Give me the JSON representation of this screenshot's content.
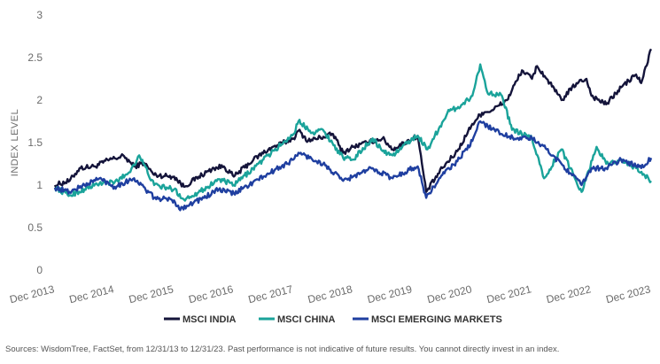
{
  "chart_data": {
    "type": "line",
    "ylabel": "INDEX LEVEL",
    "ylim": [
      0,
      3
    ],
    "yticks": [
      "0",
      "0.5",
      "1",
      "1.5",
      "2",
      "2.5",
      "3"
    ],
    "xlim": [
      "2013-12-31",
      "2023-12-31"
    ],
    "xticks": [
      {
        "date": "2013-12-31",
        "label": "Dec 2013"
      },
      {
        "date": "2014-12-31",
        "label": "Dec 2014"
      },
      {
        "date": "2015-12-31",
        "label": "Dec 2015"
      },
      {
        "date": "2016-12-31",
        "label": "Dec 2016"
      },
      {
        "date": "2017-12-31",
        "label": "Dec 2017"
      },
      {
        "date": "2018-12-31",
        "label": "Dec 2018"
      },
      {
        "date": "2019-12-31",
        "label": "Dec 2019"
      },
      {
        "date": "2020-12-31",
        "label": "Dec 2020"
      },
      {
        "date": "2021-12-31",
        "label": "Dec 2021"
      },
      {
        "date": "2022-12-31",
        "label": "Dec 2022"
      },
      {
        "date": "2023-12-31",
        "label": "Dec 2023"
      }
    ],
    "grid": false,
    "legend": "bottom",
    "series": [
      {
        "name": "MSCI INDIA",
        "color": "#14143a",
        "points": [
          [
            "2013-12-31",
            1.0
          ],
          [
            "2014-03-31",
            1.05
          ],
          [
            "2014-05-31",
            1.2
          ],
          [
            "2014-08-31",
            1.22
          ],
          [
            "2014-11-30",
            1.3
          ],
          [
            "2015-02-28",
            1.34
          ],
          [
            "2015-04-30",
            1.22
          ],
          [
            "2015-06-30",
            1.26
          ],
          [
            "2015-08-31",
            1.12
          ],
          [
            "2015-12-31",
            1.1
          ],
          [
            "2016-02-29",
            0.98
          ],
          [
            "2016-05-31",
            1.1
          ],
          [
            "2016-08-31",
            1.2
          ],
          [
            "2016-10-31",
            1.22
          ],
          [
            "2016-12-31",
            1.1
          ],
          [
            "2017-04-30",
            1.3
          ],
          [
            "2017-07-31",
            1.42
          ],
          [
            "2017-12-31",
            1.55
          ],
          [
            "2018-01-31",
            1.64
          ],
          [
            "2018-03-31",
            1.52
          ],
          [
            "2018-08-31",
            1.6
          ],
          [
            "2018-10-31",
            1.38
          ],
          [
            "2018-12-31",
            1.45
          ],
          [
            "2019-03-31",
            1.5
          ],
          [
            "2019-06-30",
            1.55
          ],
          [
            "2019-08-31",
            1.42
          ],
          [
            "2019-12-31",
            1.55
          ],
          [
            "2020-01-31",
            1.58
          ],
          [
            "2020-03-23",
            0.92
          ],
          [
            "2020-06-30",
            1.2
          ],
          [
            "2020-09-30",
            1.4
          ],
          [
            "2020-12-31",
            1.72
          ],
          [
            "2021-02-28",
            1.85
          ],
          [
            "2021-04-30",
            1.88
          ],
          [
            "2021-07-31",
            2.0
          ],
          [
            "2021-10-31",
            2.35
          ],
          [
            "2021-12-31",
            2.25
          ],
          [
            "2022-01-31",
            2.4
          ],
          [
            "2022-03-31",
            2.25
          ],
          [
            "2022-06-30",
            2.0
          ],
          [
            "2022-09-30",
            2.2
          ],
          [
            "2022-11-30",
            2.25
          ],
          [
            "2022-12-31",
            2.05
          ],
          [
            "2023-03-31",
            1.95
          ],
          [
            "2023-06-30",
            2.15
          ],
          [
            "2023-09-30",
            2.3
          ],
          [
            "2023-10-31",
            2.2
          ],
          [
            "2023-12-31",
            2.6
          ]
        ]
      },
      {
        "name": "MSCI CHINA",
        "color": "#1aa39a",
        "points": [
          [
            "2013-12-31",
            0.97
          ],
          [
            "2014-03-31",
            0.88
          ],
          [
            "2014-06-30",
            0.95
          ],
          [
            "2014-09-30",
            1.02
          ],
          [
            "2014-12-31",
            1.03
          ],
          [
            "2015-03-31",
            1.15
          ],
          [
            "2015-05-31",
            1.35
          ],
          [
            "2015-08-31",
            1.0
          ],
          [
            "2015-12-31",
            0.95
          ],
          [
            "2016-02-29",
            0.83
          ],
          [
            "2016-06-30",
            0.95
          ],
          [
            "2016-09-30",
            1.07
          ],
          [
            "2016-12-31",
            1.0
          ],
          [
            "2017-06-30",
            1.3
          ],
          [
            "2017-12-31",
            1.6
          ],
          [
            "2018-01-31",
            1.75
          ],
          [
            "2018-04-30",
            1.62
          ],
          [
            "2018-06-30",
            1.65
          ],
          [
            "2018-10-31",
            1.32
          ],
          [
            "2018-12-31",
            1.3
          ],
          [
            "2019-04-30",
            1.55
          ],
          [
            "2019-06-30",
            1.4
          ],
          [
            "2019-08-31",
            1.35
          ],
          [
            "2019-12-31",
            1.55
          ],
          [
            "2020-01-31",
            1.58
          ],
          [
            "2020-03-31",
            1.42
          ],
          [
            "2020-07-31",
            1.85
          ],
          [
            "2020-10-31",
            1.95
          ],
          [
            "2020-12-31",
            2.05
          ],
          [
            "2021-02-17",
            2.42
          ],
          [
            "2021-03-31",
            2.1
          ],
          [
            "2021-06-30",
            2.05
          ],
          [
            "2021-08-31",
            1.65
          ],
          [
            "2021-12-31",
            1.55
          ],
          [
            "2022-03-15",
            1.08
          ],
          [
            "2022-06-30",
            1.42
          ],
          [
            "2022-10-31",
            0.92
          ],
          [
            "2023-01-31",
            1.45
          ],
          [
            "2023-03-31",
            1.25
          ],
          [
            "2023-06-30",
            1.3
          ],
          [
            "2023-09-30",
            1.2
          ],
          [
            "2023-12-31",
            1.05
          ]
        ]
      },
      {
        "name": "MSCI EMERGING MARKETS",
        "color": "#1f3fa0",
        "points": [
          [
            "2013-12-31",
            0.97
          ],
          [
            "2014-03-31",
            0.92
          ],
          [
            "2014-06-30",
            1.0
          ],
          [
            "2014-09-30",
            1.08
          ],
          [
            "2014-12-31",
            0.98
          ],
          [
            "2015-04-30",
            1.08
          ],
          [
            "2015-08-31",
            0.85
          ],
          [
            "2015-12-31",
            0.82
          ],
          [
            "2016-01-31",
            0.72
          ],
          [
            "2016-06-30",
            0.85
          ],
          [
            "2016-09-30",
            0.95
          ],
          [
            "2016-12-31",
            0.9
          ],
          [
            "2017-06-30",
            1.1
          ],
          [
            "2017-12-31",
            1.3
          ],
          [
            "2018-01-31",
            1.38
          ],
          [
            "2018-06-30",
            1.25
          ],
          [
            "2018-10-31",
            1.05
          ],
          [
            "2018-12-31",
            1.1
          ],
          [
            "2019-04-30",
            1.2
          ],
          [
            "2019-08-31",
            1.08
          ],
          [
            "2019-12-31",
            1.2
          ],
          [
            "2020-01-31",
            1.22
          ],
          [
            "2020-03-23",
            0.85
          ],
          [
            "2020-06-30",
            1.12
          ],
          [
            "2020-09-30",
            1.28
          ],
          [
            "2020-12-31",
            1.52
          ],
          [
            "2021-02-17",
            1.75
          ],
          [
            "2021-06-30",
            1.6
          ],
          [
            "2021-09-30",
            1.55
          ],
          [
            "2021-12-31",
            1.55
          ],
          [
            "2022-03-31",
            1.42
          ],
          [
            "2022-06-30",
            1.25
          ],
          [
            "2022-10-31",
            1.0
          ],
          [
            "2022-12-31",
            1.2
          ],
          [
            "2023-03-31",
            1.2
          ],
          [
            "2023-06-30",
            1.3
          ],
          [
            "2023-10-31",
            1.2
          ],
          [
            "2023-12-31",
            1.32
          ]
        ]
      }
    ]
  },
  "footnote": "Sources: WisdomTree, FactSet, from 12/31/13 to 12/31/23. Past performance is not indicative of future results. You cannot directly invest in an index."
}
